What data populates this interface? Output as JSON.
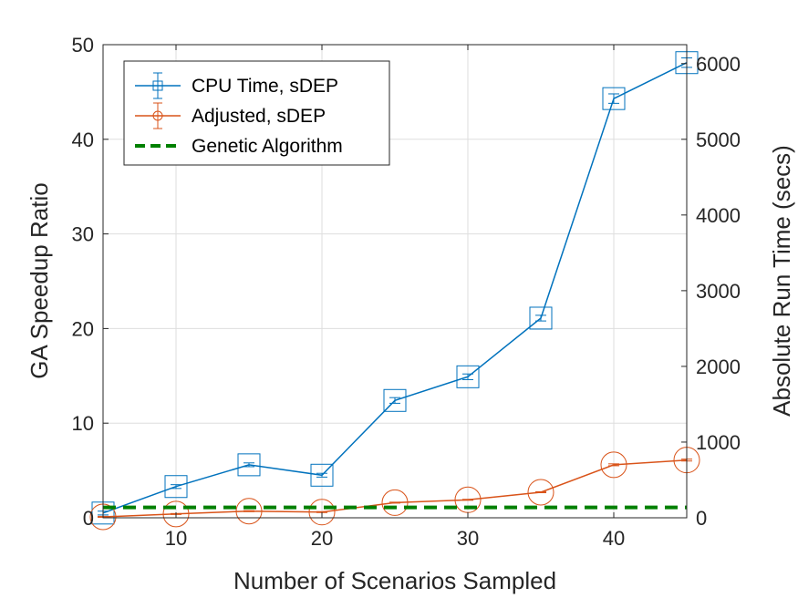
{
  "chart_data": {
    "type": "line",
    "xlabel": "Number of Scenarios Sampled",
    "ylabel": "GA Speedup Ratio",
    "y2label": "Absolute Run Time (secs)",
    "xlim": [
      5,
      45
    ],
    "ylim": [
      0,
      50
    ],
    "y2lim": [
      0,
      6250
    ],
    "xticks": [
      10,
      20,
      30,
      40
    ],
    "yticks": [
      0,
      10,
      20,
      30,
      40,
      50
    ],
    "y2ticks": [
      0,
      1000,
      2000,
      3000,
      4000,
      5000,
      6000
    ],
    "grid": true,
    "legend_position": "top-left",
    "x": [
      5,
      10,
      15,
      20,
      25,
      30,
      35,
      40,
      45
    ],
    "series": [
      {
        "name": "CPU Time, sDEP",
        "color": "#0072BD",
        "marker": "square",
        "values": [
          0.5,
          3.3,
          5.6,
          4.5,
          12.4,
          14.9,
          21.1,
          44.3,
          48.1
        ],
        "errors": [
          0.2,
          0.2,
          0.2,
          0.2,
          0.3,
          0.3,
          0.3,
          0.5,
          0.5
        ]
      },
      {
        "name": "Adjusted, sDEP",
        "color": "#D95319",
        "marker": "circle",
        "values": [
          0.1,
          0.4,
          0.7,
          0.6,
          1.6,
          1.9,
          2.7,
          5.6,
          6.1
        ],
        "errors": [
          0.05,
          0.05,
          0.05,
          0.05,
          0.05,
          0.05,
          0.05,
          0.1,
          0.1
        ]
      },
      {
        "name": "Genetic Algorithm",
        "color": "#008000",
        "marker": "none",
        "dashed": true,
        "values": [
          1.1,
          1.1,
          1.1,
          1.1,
          1.1,
          1.1,
          1.1,
          1.1,
          1.1
        ]
      }
    ]
  }
}
